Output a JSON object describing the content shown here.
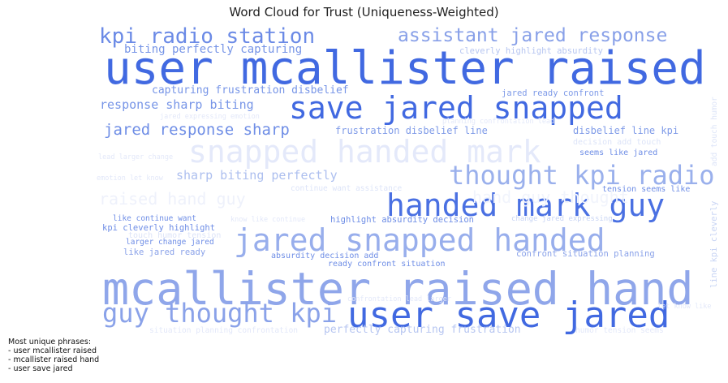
{
  "chart_data": {
    "type": "wordcloud",
    "title": "Word Cloud for Trust (Uniqueness-Weighted)",
    "terms": [
      {
        "text": "user mcallister raised",
        "color": "#4169e1"
      },
      {
        "text": "mcallister raised hand",
        "color": "#8fa6ea"
      },
      {
        "text": "user save jared",
        "color": "#4169e1"
      },
      {
        "text": "save jared snapped",
        "color": "#4169e1"
      },
      {
        "text": "handed mark guy",
        "color": "#4a70e2"
      },
      {
        "text": "jared snapped handed",
        "color": "#98aeec"
      },
      {
        "text": "snapped handed mark",
        "color": "#e4e9fa"
      },
      {
        "text": "thought kpi radio",
        "color": "#9ab0ec"
      },
      {
        "text": "guy thought kpi",
        "color": "#8aa2e9"
      },
      {
        "text": "kpi radio station",
        "color": "#6b8ae6"
      },
      {
        "text": "assistant jared response",
        "color": "#88a0e8"
      },
      {
        "text": "jared response sharp",
        "color": "#6f8ee6"
      },
      {
        "text": "response sharp biting",
        "color": "#7795e7"
      },
      {
        "text": "sharp biting perfectly",
        "color": "#adbfef"
      },
      {
        "text": "biting perfectly capturing",
        "color": "#7795e7"
      },
      {
        "text": "capturing frustration disbelief",
        "color": "#7795e7"
      },
      {
        "text": "frustration disbelief line",
        "color": "#7f9be8"
      },
      {
        "text": "disbelief line kpi",
        "color": "#7f9be8"
      },
      {
        "text": "perfectly capturing frustration",
        "color": "#b7c6f1"
      },
      {
        "text": "cleverly highlight absurdity",
        "color": "#b7c6f1"
      },
      {
        "text": "jared ready confront",
        "color": "#7f9be8"
      },
      {
        "text": "seems like jared",
        "color": "#6f8ee6"
      },
      {
        "text": "tension seems like",
        "color": "#6f8ee6"
      },
      {
        "text": "highlight absurdity decision",
        "color": "#6f8ee6"
      },
      {
        "text": "absurdity decision add",
        "color": "#6f8ee6"
      },
      {
        "text": "ready confront situation",
        "color": "#6f8ee6"
      },
      {
        "text": "confront situation planning",
        "color": "#8aa2e9"
      },
      {
        "text": "like continue want",
        "color": "#6f8ee6"
      },
      {
        "text": "kpi cleverly highlight",
        "color": "#6f8ee6"
      },
      {
        "text": "larger change jared",
        "color": "#6f8ee6"
      },
      {
        "text": "like jared ready",
        "color": "#8aa2e9"
      },
      {
        "text": "line kpi cleverly",
        "color": "#c8d4f4"
      },
      {
        "text": "add touch humor",
        "color": "#dde4f8"
      },
      {
        "text": "continue want assistance",
        "color": "#dde4f8"
      },
      {
        "text": "change jared expressing",
        "color": "#c8d4f4"
      },
      {
        "text": "touch humor tension",
        "color": "#dde4f8"
      },
      {
        "text": "decision add touch",
        "color": "#dde4f8"
      },
      {
        "text": "jared expressing emotion",
        "color": "#e3e8f9"
      },
      {
        "text": "planning confrontation lead",
        "color": "#e3e8f9"
      },
      {
        "text": "lead larger change",
        "color": "#e3e8f9"
      },
      {
        "text": "emotion let know",
        "color": "#e3e8f9"
      },
      {
        "text": "know like continue",
        "color": "#e3e8f9"
      },
      {
        "text": "confrontation lead larger",
        "color": "#e3e8f9"
      },
      {
        "text": "let know like",
        "color": "#e3e8f9"
      },
      {
        "text": "humor tension seems",
        "color": "#e3e8f9"
      },
      {
        "text": "situation planning confrontation",
        "color": "#e3e8f9"
      },
      {
        "text": "raised hand guy",
        "color": "#eef1fb"
      },
      {
        "text": "hand guy thought",
        "color": "#f1f4fc"
      }
    ]
  },
  "note": {
    "heading": "Most unique phrases:",
    "items": [
      "- user mcallister raised",
      "- mcallister raised hand",
      "- user save jared"
    ]
  }
}
